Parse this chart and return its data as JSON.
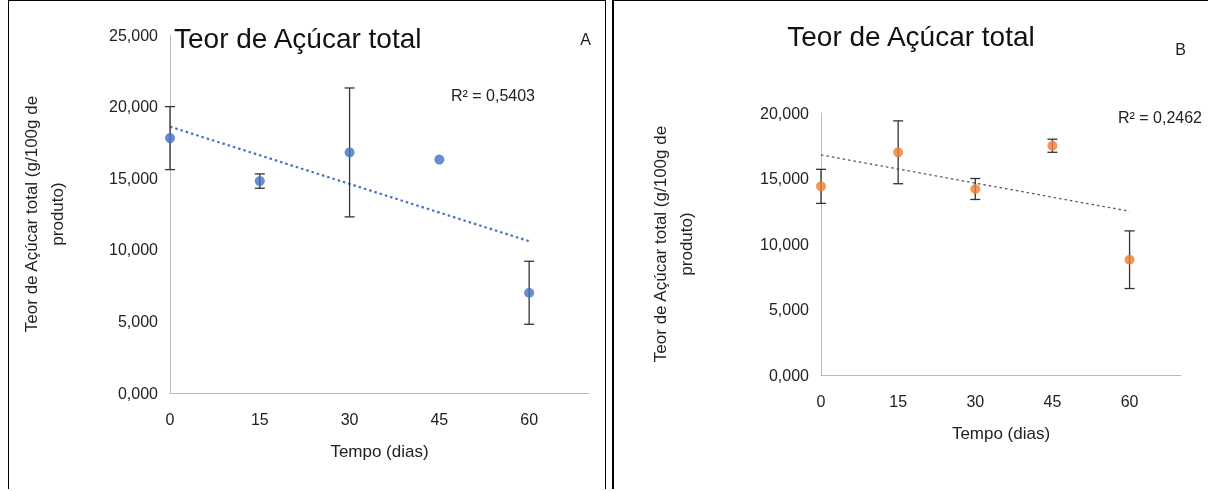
{
  "chart_data": [
    {
      "type": "scatter",
      "title": "Teor de Açúcar total",
      "xlabel": "Tempo (dias)",
      "ylabel": "Teor de Açúcar total (g/100g de produto)",
      "xlim": [
        0,
        70
      ],
      "xticks": [
        0,
        15,
        30,
        45,
        60
      ],
      "ylim": [
        0,
        25
      ],
      "yticks": [
        {
          "value": 0,
          "label": "0,000"
        },
        {
          "value": 5,
          "label": "5,000"
        },
        {
          "value": 10,
          "label": "10,000"
        },
        {
          "value": 15,
          "label": "15,000"
        },
        {
          "value": 20,
          "label": "20,000"
        },
        {
          "value": 25,
          "label": "25,000"
        }
      ],
      "grid": false,
      "marker": "circle",
      "annotations": [
        "A",
        "R² = 0,5403"
      ],
      "series": [
        {
          "type": "scatter",
          "x": [
            0,
            15,
            30,
            45,
            60
          ],
          "values": [
            17.8,
            14.8,
            16.8,
            16.3,
            7.0
          ],
          "errors": [
            2.2,
            0.5,
            4.5,
            null,
            2.2
          ],
          "color": "#4472c4"
        },
        {
          "type": "line",
          "x": [
            0,
            60
          ],
          "values": [
            18.6,
            10.6
          ],
          "color": "#4472c4",
          "line_style": "dotted",
          "marker": "none"
        }
      ]
    },
    {
      "type": "scatter",
      "title": "Teor de Açúcar total",
      "xlabel": "Tempo (dias)",
      "ylabel": "Teor de Açúcar total (g/100g de produto)",
      "xlim": [
        0,
        70
      ],
      "xticks": [
        0,
        15,
        30,
        45,
        60
      ],
      "ylim": [
        0,
        20
      ],
      "yticks": [
        {
          "value": 0,
          "label": "0,000"
        },
        {
          "value": 5,
          "label": "5,000"
        },
        {
          "value": 10,
          "label": "10,000"
        },
        {
          "value": 15,
          "label": "15,000"
        },
        {
          "value": 20,
          "label": "20,000"
        }
      ],
      "grid": false,
      "marker": "circle",
      "annotations": [
        "B",
        "R² = 0,2462"
      ],
      "series": [
        {
          "type": "scatter",
          "x": [
            0,
            15,
            30,
            45,
            60
          ],
          "values": [
            14.4,
            17.0,
            14.2,
            17.5,
            8.8
          ],
          "errors": [
            1.3,
            2.4,
            0.8,
            0.5,
            2.2
          ],
          "color": "#ed7d31"
        },
        {
          "type": "line",
          "x": [
            0,
            60
          ],
          "values": [
            16.8,
            12.5
          ],
          "color": "#595959",
          "line_style": "dotted",
          "marker": "none"
        }
      ]
    }
  ]
}
